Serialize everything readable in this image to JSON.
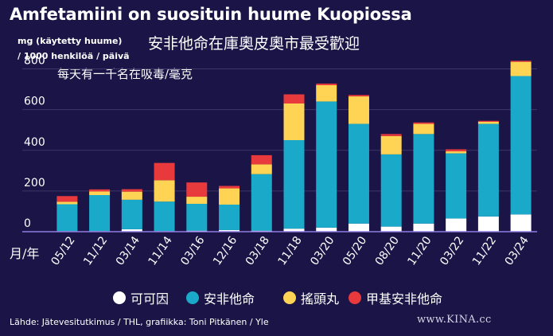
{
  "title": "Amfetamiini on suosituin huume Kuopiossa",
  "unit_line_1": "mg (käytetty huume)",
  "unit_line_2": "/ 1000 henkilöä / päivä",
  "subtitle_cn": "安非他命在庫奧皮奧市最受歡迎",
  "unit_cn": "每天有一千名在吸毒/毫克",
  "x_unit_cn": "月/年",
  "source": "Lähde: Jätevesitutkimus / THL, grafiikka: Toni Pitkänen / Yle",
  "watermark": "www.KINA.cc",
  "colors": {
    "background": "#1b1446",
    "cocaine": "#ffffff",
    "amphetamine": "#1aa9c9",
    "mdma": "#ffd454",
    "methamphetamine": "#e8393d"
  },
  "chart_data": {
    "type": "bar",
    "stacked": true,
    "categories": [
      "05/12",
      "11/12",
      "03/14",
      "11/14",
      "03/16",
      "12/16",
      "03/18",
      "11/18",
      "03/20",
      "05/20",
      "08/20",
      "11/20",
      "03/22",
      "11/22",
      "03/24"
    ],
    "ylim": [
      0,
      900
    ],
    "yticks": [
      0,
      200,
      400,
      600,
      800
    ],
    "grid": true,
    "legend_position": "bottom",
    "series": [
      {
        "name": "可可因",
        "color_key": "cocaine",
        "values": [
          3,
          3,
          12,
          3,
          5,
          8,
          5,
          15,
          20,
          40,
          25,
          40,
          65,
          75,
          85
        ]
      },
      {
        "name": "安非他命",
        "color_key": "amphetamine",
        "values": [
          132,
          177,
          145,
          145,
          132,
          125,
          278,
          435,
          620,
          490,
          355,
          440,
          320,
          455,
          680
        ]
      },
      {
        "name": "搖頭丸",
        "color_key": "mdma",
        "values": [
          12,
          18,
          40,
          105,
          35,
          80,
          48,
          180,
          80,
          135,
          90,
          50,
          10,
          10,
          70
        ]
      },
      {
        "name": "甲基安非他命",
        "color_key": "methamphetamine",
        "values": [
          28,
          10,
          12,
          85,
          70,
          12,
          45,
          45,
          8,
          7,
          10,
          7,
          10,
          5,
          5
        ]
      }
    ]
  }
}
